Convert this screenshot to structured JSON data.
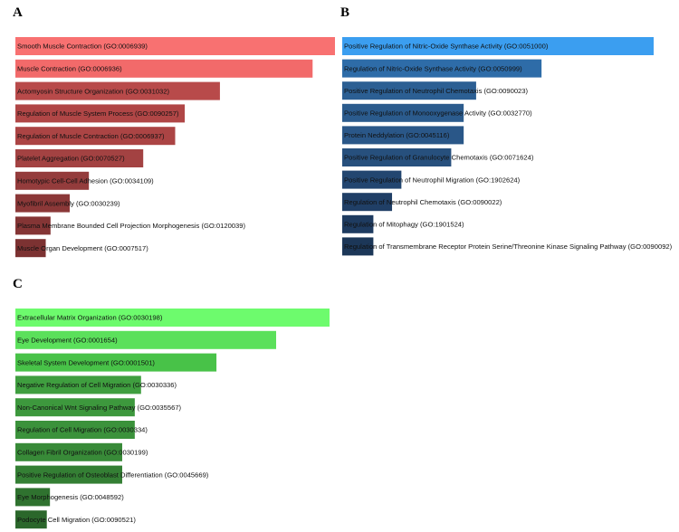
{
  "chart_data": [
    {
      "type": "bar",
      "panel": "A",
      "orientation": "horizontal",
      "colors": [
        "#f87171",
        "#f26a6a",
        "#b84a4a",
        "#b04646",
        "#ab4444",
        "#a34242",
        "#943c3c",
        "#8b3838",
        "#843535",
        "#7c3232"
      ],
      "categories": [
        "Smooth Muscle Contraction (GO:0006939)",
        "Muscle Contraction (GO:0006936)",
        "Actomyosin Structure Organization (GO:0031032)",
        "Regulation of Muscle System Process (GO:0090257)",
        "Regulation of Muscle Contraction (GO:0006937)",
        "Platelet Aggregation (GO:0070527)",
        "Homotypic Cell-Cell Adhesion (GO:0034109)",
        "Myofibril Assembly (GO:0030239)",
        "Plasma Membrane Bounded Cell Projection Morphogenesis (GO:0120039)",
        "Muscle Organ Development (GO:0007517)"
      ],
      "values": [
        1.0,
        0.93,
        0.64,
        0.53,
        0.5,
        0.4,
        0.23,
        0.17,
        0.11,
        0.095
      ]
    },
    {
      "type": "bar",
      "panel": "B",
      "orientation": "horizontal",
      "colors": [
        "#3b9ef0",
        "#2e6ca8",
        "#2c5f93",
        "#2b5b8d",
        "#2a5788",
        "#27507d",
        "#234670",
        "#203f66",
        "#1e3b60",
        "#1c3758"
      ],
      "categories": [
        "Positive Regulation of Nitric-Oxide Synthase Activity (GO:0051000)",
        "Regulation of Nitric-Oxide Synthase Activity (GO:0050999)",
        "Positive Regulation of Neutrophil Chemotaxis (GO:0090023)",
        "Positive Regulation of Monooxygenase Activity (GO:0032770)",
        "Protein Neddylation (GO:0045116)",
        "Positive Regulation of Granulocyte Chemotaxis (GO:0071624)",
        "Positive Regulation of Neutrophil Migration (GO:1902624)",
        "Regulation of Neutrophil Chemotaxis (GO:0090022)",
        "Regulation of Mitophagy (GO:1901524)",
        "Regulation of Transmembrane Receptor Protein Serine/Threonine Kinase Signaling Pathway (GO:0090092)"
      ],
      "values": [
        1.0,
        0.64,
        0.43,
        0.39,
        0.39,
        0.35,
        0.19,
        0.16,
        0.1,
        0.1
      ]
    },
    {
      "type": "bar",
      "panel": "C",
      "orientation": "horizontal",
      "colors": [
        "#6dfb6d",
        "#5be05b",
        "#48c248",
        "#3f9e3f",
        "#3d983d",
        "#3b923b",
        "#388a38",
        "#347f34",
        "#2f722f",
        "#2b672b"
      ],
      "categories": [
        "Extracellular Matrix Organization (GO:0030198)",
        "Eye Development (GO:0001654)",
        "Skeletal System Development (GO:0001501)",
        "Negative Regulation of Cell Migration (GO:0030336)",
        "Non-Canonical Wnt Signaling Pathway (GO:0035567)",
        "Regulation of Cell Migration (GO:0030334)",
        "Collagen Fibril Organization (GO:0030199)",
        "Positive Regulation of Osteoblast Differentiation (GO:0045669)",
        "Eye Morphogenesis (GO:0048592)",
        "Podocyte Cell Migration (GO:0090521)"
      ],
      "values": [
        1.0,
        0.83,
        0.64,
        0.4,
        0.38,
        0.38,
        0.34,
        0.34,
        0.11,
        0.1
      ]
    }
  ]
}
